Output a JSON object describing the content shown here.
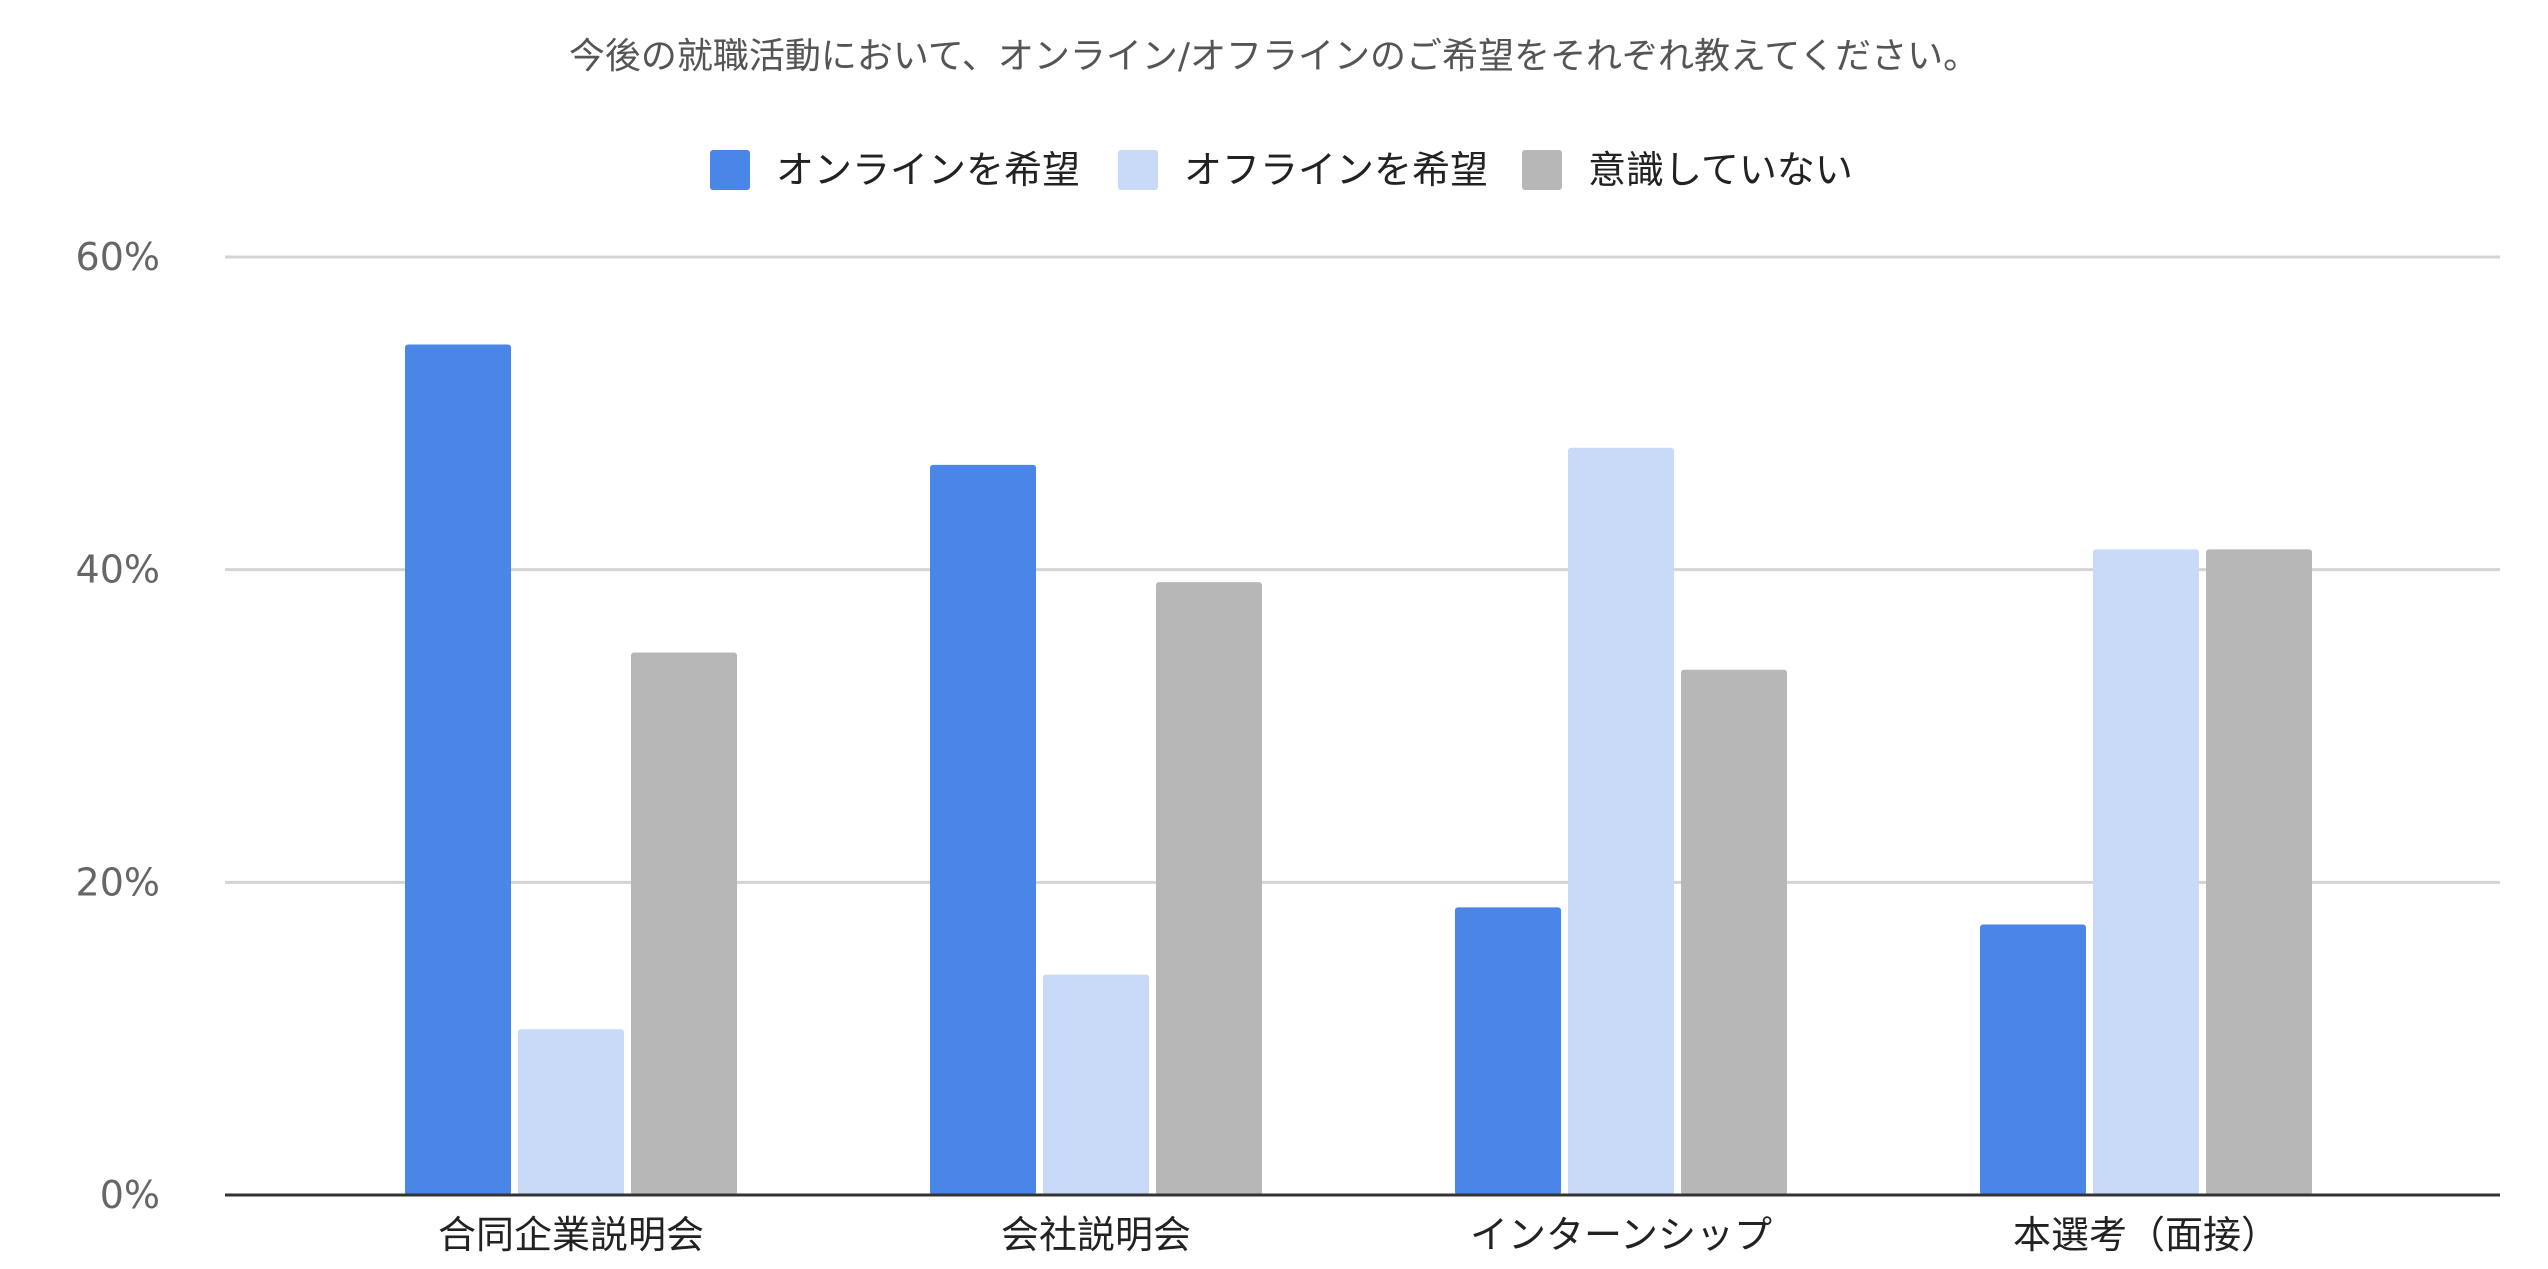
{
  "chart_data": {
    "type": "bar",
    "title": "今後の就職活動において、オンライン/オフラインのご希望をそれぞれ教えてください。",
    "xlabel": "",
    "ylabel": "",
    "categories": [
      "合同企業説明会",
      "会社説明会",
      "インターンシップ",
      "本選考（面接）"
    ],
    "series": [
      {
        "name": "オンラインを希望",
        "color": "#4A86E8",
        "values": [
          54.4,
          46.7,
          18.4,
          17.3
        ]
      },
      {
        "name": "オフラインを希望",
        "color": "#C9DAF8",
        "values": [
          10.6,
          14.1,
          47.8,
          41.3
        ]
      },
      {
        "name": "意識していない",
        "color": "#B7B7B7",
        "values": [
          34.7,
          39.2,
          33.6,
          41.3
        ]
      }
    ],
    "ylim": [
      0,
      60
    ],
    "yticks": [
      0,
      20,
      40,
      60
    ],
    "ytick_labels": [
      "0%",
      "20%",
      "40%",
      "60%"
    ],
    "grid": true,
    "legend_position": "top"
  }
}
